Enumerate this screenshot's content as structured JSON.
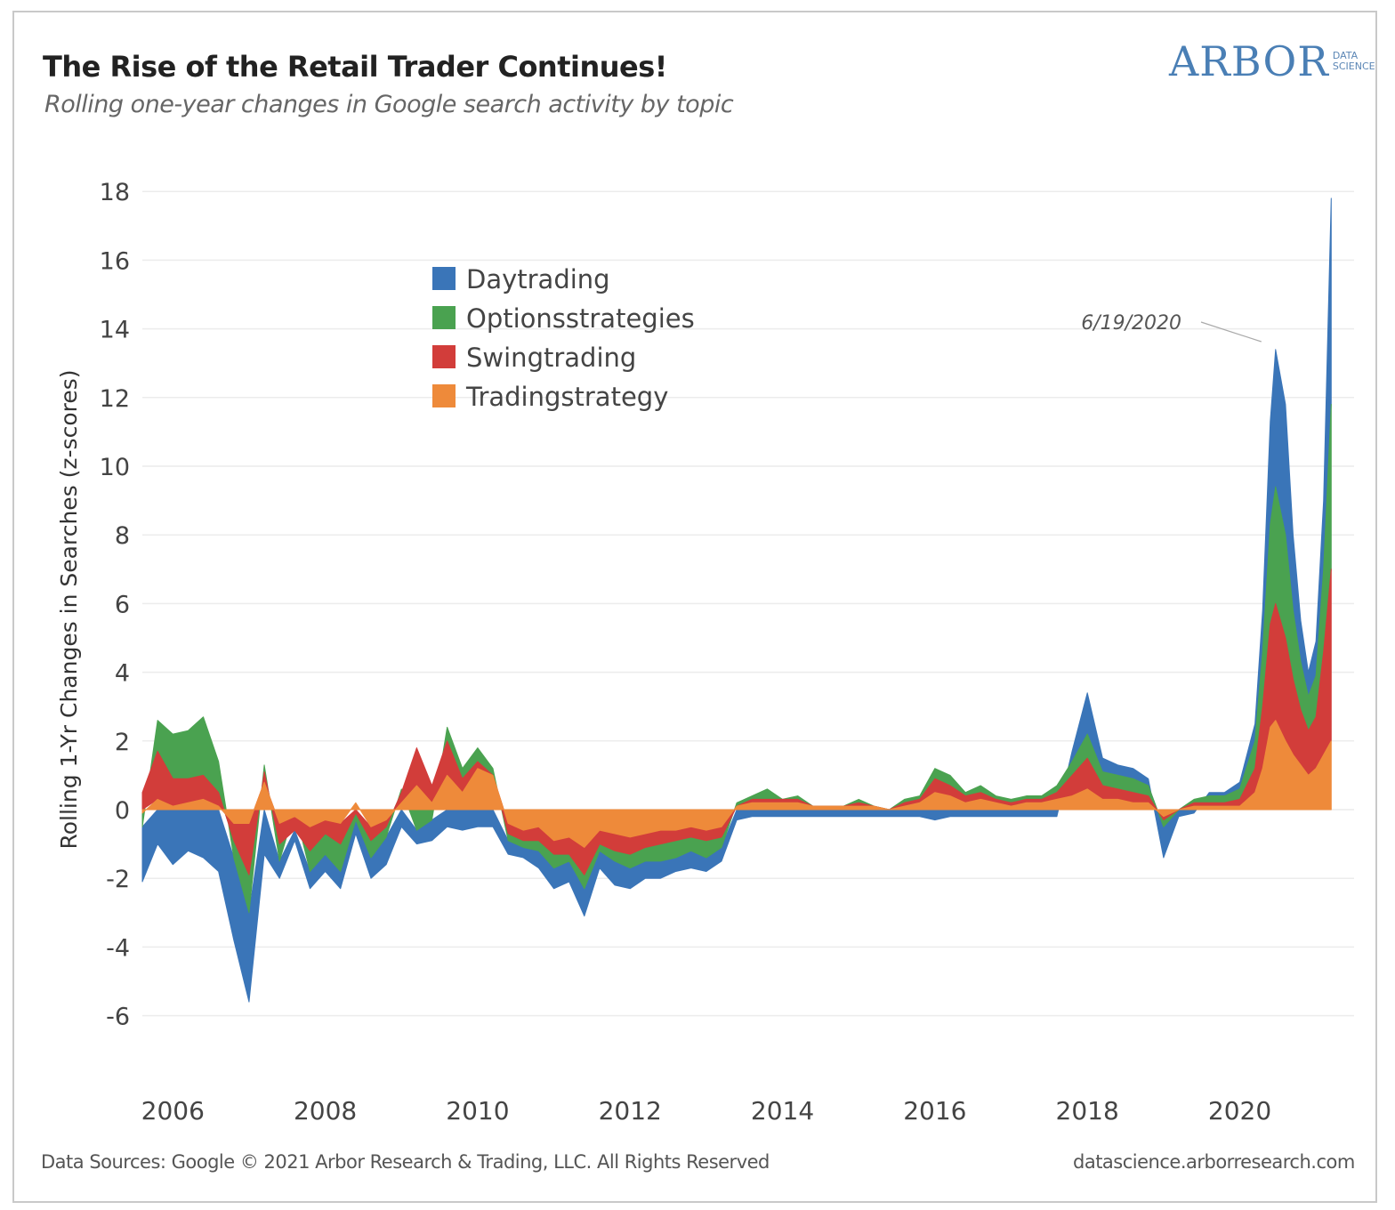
{
  "header": {
    "title": "The Rise of the Retail Trader Continues!",
    "subtitle": "Rolling one-year changes in Google search activity by topic"
  },
  "logo": {
    "main": "ARBOR",
    "sub_line1": "DATA",
    "sub_line2": "SCIENCE",
    "color": "#4a7fb5"
  },
  "footer": {
    "sources": "Data Sources: Google © 2021 Arbor Research & Trading, LLC. All Rights Reserved",
    "website": "datascience.arborresearch.com"
  },
  "chart_data": {
    "type": "area",
    "stacked": true,
    "title": "The Rise of the Retail Trader Continues!",
    "subtitle": "Rolling one-year changes in Google search activity by topic",
    "xlabel": "",
    "ylabel": "Rolling 1-Yr Changes in Searches (z-scores)",
    "ylim": [
      -7,
      18.5
    ],
    "xlim": [
      2005.6,
      2021.5
    ],
    "yticks": [
      18,
      16,
      14,
      12,
      10,
      8,
      6,
      4,
      2,
      0,
      -2,
      -4,
      -6
    ],
    "xticks": [
      2006,
      2008,
      2010,
      2012,
      2014,
      2016,
      2018,
      2020
    ],
    "grid": true,
    "legend_position": "upper-left-center",
    "annotation": {
      "text": "6/19/2020",
      "x": 2020.47,
      "y": 13.4
    },
    "x": [
      2005.6,
      2005.8,
      2006.0,
      2006.2,
      2006.4,
      2006.6,
      2006.8,
      2007.0,
      2007.2,
      2007.4,
      2007.6,
      2007.8,
      2008.0,
      2008.2,
      2008.4,
      2008.6,
      2008.8,
      2009.0,
      2009.2,
      2009.4,
      2009.6,
      2009.8,
      2010.0,
      2010.2,
      2010.4,
      2010.6,
      2010.8,
      2011.0,
      2011.2,
      2011.4,
      2011.6,
      2011.8,
      2012.0,
      2012.2,
      2012.4,
      2012.6,
      2012.8,
      2013.0,
      2013.2,
      2013.4,
      2013.6,
      2013.8,
      2014.0,
      2014.2,
      2014.4,
      2014.6,
      2014.8,
      2015.0,
      2015.2,
      2015.4,
      2015.6,
      2015.8,
      2016.0,
      2016.2,
      2016.4,
      2016.6,
      2016.8,
      2017.0,
      2017.2,
      2017.4,
      2017.6,
      2017.8,
      2018.0,
      2018.2,
      2018.4,
      2018.6,
      2018.8,
      2019.0,
      2019.2,
      2019.4,
      2019.6,
      2019.8,
      2020.0,
      2020.2,
      2020.3,
      2020.4,
      2020.47,
      2020.6,
      2020.7,
      2020.8,
      2020.9,
      2021.0,
      2021.1,
      2021.2
    ],
    "series": [
      {
        "name": "Daytrading",
        "color": "#3a75b8",
        "values": [
          -1.6,
          -1.0,
          -1.6,
          -1.2,
          -1.4,
          -1.8,
          -2.4,
          -2.6,
          -1.3,
          -0.5,
          -0.3,
          -0.5,
          -0.5,
          -0.5,
          -0.4,
          -0.6,
          -0.8,
          -0.5,
          -0.4,
          -0.6,
          -0.5,
          -0.6,
          -0.5,
          -0.5,
          -0.4,
          -0.3,
          -0.5,
          -0.6,
          -0.6,
          -0.8,
          -0.5,
          -0.7,
          -0.6,
          -0.5,
          -0.5,
          -0.4,
          -0.5,
          -0.4,
          -0.4,
          -0.3,
          -0.2,
          -0.2,
          -0.2,
          -0.2,
          -0.2,
          -0.2,
          -0.2,
          -0.2,
          -0.2,
          -0.2,
          -0.2,
          -0.2,
          -0.3,
          -0.2,
          -0.2,
          -0.2,
          -0.2,
          -0.2,
          -0.2,
          -0.2,
          -0.2,
          0.3,
          1.2,
          0.4,
          0.3,
          0.3,
          0.2,
          -0.9,
          -0.2,
          -0.1,
          0.1,
          0.1,
          0.2,
          0.5,
          1.2,
          3.0,
          4.0,
          3.8,
          2.2,
          1.2,
          0.7,
          1.0,
          2.0,
          6.0
        ]
      },
      {
        "name": "Optionsstrategies",
        "color": "#4aa250",
        "values": [
          -0.4,
          0.9,
          1.3,
          1.4,
          1.7,
          0.9,
          -0.5,
          -1.1,
          0.2,
          -0.5,
          0.0,
          -0.6,
          -0.6,
          -0.8,
          -0.2,
          -0.5,
          -0.3,
          0.1,
          -0.6,
          -0.3,
          0.4,
          0.3,
          0.4,
          0.2,
          -0.2,
          -0.2,
          -0.3,
          -0.4,
          -0.2,
          -0.4,
          -0.2,
          -0.3,
          -0.4,
          -0.4,
          -0.5,
          -0.5,
          -0.4,
          -0.5,
          -0.3,
          0.1,
          0.1,
          0.3,
          0.0,
          0.1,
          0.0,
          0.0,
          0.0,
          0.1,
          0.0,
          0.0,
          0.1,
          0.1,
          0.3,
          0.3,
          0.1,
          0.2,
          0.1,
          0.1,
          0.1,
          0.1,
          0.2,
          0.4,
          0.7,
          0.4,
          0.4,
          0.4,
          0.3,
          -0.2,
          0.0,
          0.1,
          0.2,
          0.2,
          0.3,
          0.8,
          1.6,
          2.9,
          3.4,
          3.0,
          2.0,
          1.4,
          1.0,
          1.2,
          2.4,
          4.8
        ]
      },
      {
        "name": "Swingtrading",
        "color": "#d23d3a",
        "values": [
          0.5,
          1.4,
          0.8,
          0.7,
          0.7,
          0.4,
          -0.5,
          -1.5,
          0.3,
          -0.6,
          -0.4,
          -0.7,
          -0.4,
          -0.6,
          -0.1,
          -0.4,
          -0.2,
          0.3,
          1.1,
          0.5,
          1.0,
          0.4,
          0.2,
          0.0,
          -0.3,
          -0.3,
          -0.4,
          -0.4,
          -0.5,
          -0.8,
          -0.4,
          -0.5,
          -0.5,
          -0.4,
          -0.4,
          -0.3,
          -0.3,
          -0.3,
          -0.3,
          0.0,
          0.1,
          0.1,
          0.1,
          0.1,
          0.0,
          0.0,
          0.0,
          0.1,
          0.0,
          0.0,
          0.1,
          0.1,
          0.4,
          0.3,
          0.2,
          0.2,
          0.1,
          0.1,
          0.1,
          0.1,
          0.2,
          0.6,
          0.9,
          0.4,
          0.3,
          0.3,
          0.2,
          -0.1,
          0.0,
          0.1,
          0.1,
          0.1,
          0.2,
          0.7,
          1.8,
          3.0,
          3.4,
          3.0,
          2.2,
          1.6,
          1.3,
          1.5,
          3.0,
          5.0
        ]
      },
      {
        "name": "Tradingstrategy",
        "color": "#ee8a3a",
        "values": [
          -0.1,
          0.3,
          0.1,
          0.2,
          0.3,
          0.1,
          -0.4,
          -0.4,
          0.8,
          -0.4,
          -0.2,
          -0.5,
          -0.3,
          -0.4,
          0.2,
          -0.5,
          -0.3,
          0.2,
          0.7,
          0.2,
          1.0,
          0.5,
          1.2,
          1.0,
          -0.4,
          -0.6,
          -0.5,
          -0.9,
          -0.8,
          -1.1,
          -0.6,
          -0.7,
          -0.8,
          -0.7,
          -0.6,
          -0.6,
          -0.5,
          -0.6,
          -0.5,
          0.1,
          0.2,
          0.2,
          0.2,
          0.2,
          0.1,
          0.1,
          0.1,
          0.1,
          0.1,
          0.0,
          0.1,
          0.2,
          0.5,
          0.4,
          0.2,
          0.3,
          0.2,
          0.1,
          0.2,
          0.2,
          0.3,
          0.4,
          0.6,
          0.3,
          0.3,
          0.2,
          0.2,
          -0.2,
          0.0,
          0.1,
          0.1,
          0.1,
          0.1,
          0.5,
          1.2,
          2.4,
          2.6,
          2.0,
          1.6,
          1.3,
          1.0,
          1.2,
          1.6,
          2.0
        ]
      }
    ]
  }
}
